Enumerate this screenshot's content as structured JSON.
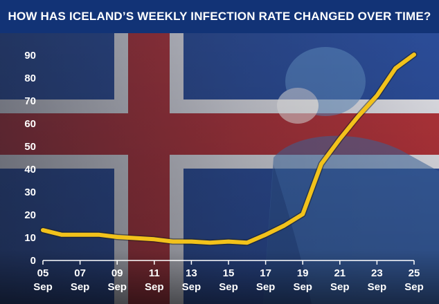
{
  "title": "HOW HAS ICELAND’S WEEKLY INFECTION RATE CHANGED OVER TIME?",
  "colors": {
    "title_bar": "#123376",
    "line": "#f2c21b",
    "line_outline": "#1a1a1a",
    "text": "#ffffff",
    "flag_blue": "#2c4f9e",
    "flag_red": "#b8343a",
    "flag_white": "#e9e9ef"
  },
  "chart_data": {
    "type": "line",
    "title": "HOW HAS ICELAND’S WEEKLY INFECTION RATE CHANGED OVER TIME?",
    "xlabel": "",
    "ylabel": "",
    "ylim": [
      0,
      90
    ],
    "yticks": [
      0,
      10,
      20,
      30,
      40,
      50,
      60,
      70,
      80,
      90
    ],
    "grid": false,
    "legend": "none",
    "x": [
      5,
      6,
      7,
      8,
      9,
      10,
      11,
      12,
      13,
      14,
      15,
      16,
      17,
      18,
      19,
      20,
      21,
      22,
      23,
      24,
      25
    ],
    "xlim": [
      5,
      25
    ],
    "xtick_values": [
      5,
      7,
      9,
      11,
      13,
      15,
      17,
      19,
      21,
      23,
      25
    ],
    "xtick_labels": [
      {
        "day": "05",
        "month": "Sep"
      },
      {
        "day": "07",
        "month": "Sep"
      },
      {
        "day": "09",
        "month": "Sep"
      },
      {
        "day": "11",
        "month": "Sep"
      },
      {
        "day": "13",
        "month": "Sep"
      },
      {
        "day": "15",
        "month": "Sep"
      },
      {
        "day": "17",
        "month": "Sep"
      },
      {
        "day": "19",
        "month": "Sep"
      },
      {
        "day": "21",
        "month": "Sep"
      },
      {
        "day": "23",
        "month": "Sep"
      },
      {
        "day": "25",
        "month": "Sep"
      }
    ],
    "series": [
      {
        "values": [
          13,
          11,
          11,
          11,
          10,
          9.5,
          9,
          8,
          8,
          7.5,
          8,
          7.5,
          11,
          15,
          20,
          42,
          53,
          63,
          72,
          84,
          90
        ]
      }
    ]
  }
}
